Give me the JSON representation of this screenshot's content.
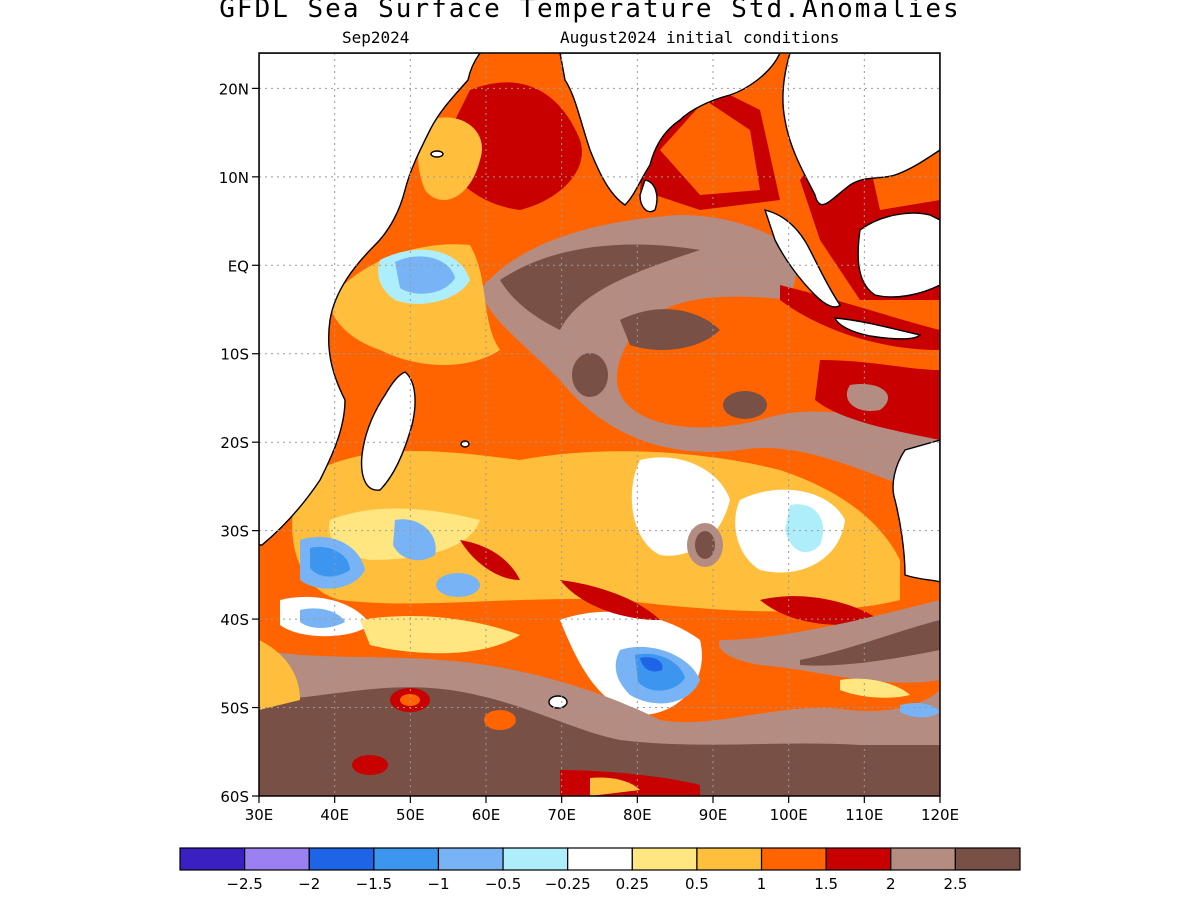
{
  "figure": {
    "title": "GFDL Sea Surface Temperature Std.Anomalies",
    "valid_month": "Sep2024",
    "init_label": "August2024 initial conditions"
  },
  "map": {
    "region": "Indian Ocean",
    "lon_range": [
      30,
      120
    ],
    "lat_range": [
      -60,
      24
    ],
    "gridlines": true,
    "land_color": "#ffffff",
    "coast_color": "#000000"
  },
  "axes": {
    "lat_labels": [
      "20N",
      "10N",
      "EQ",
      "10S",
      "20S",
      "30S",
      "40S",
      "50S",
      "60S"
    ],
    "lon_labels": [
      "30E",
      "40E",
      "50E",
      "60E",
      "70E",
      "80E",
      "90E",
      "100E",
      "110E",
      "120E"
    ]
  },
  "colorbar": {
    "colors": [
      "#3a20c0",
      "#9a80f0",
      "#1e64e6",
      "#3c96f0",
      "#78b4f5",
      "#aeeefa",
      "#ffffff",
      "#ffe680",
      "#ffbe3c",
      "#ff6400",
      "#c80000",
      "#b48c82",
      "#785046"
    ],
    "labels": [
      "-2.5",
      "-2",
      "-1.5",
      "-1",
      "-0.5",
      "-0.25",
      "0.25",
      "0.5",
      "1",
      "1.5",
      "2",
      "2.5"
    ]
  }
}
